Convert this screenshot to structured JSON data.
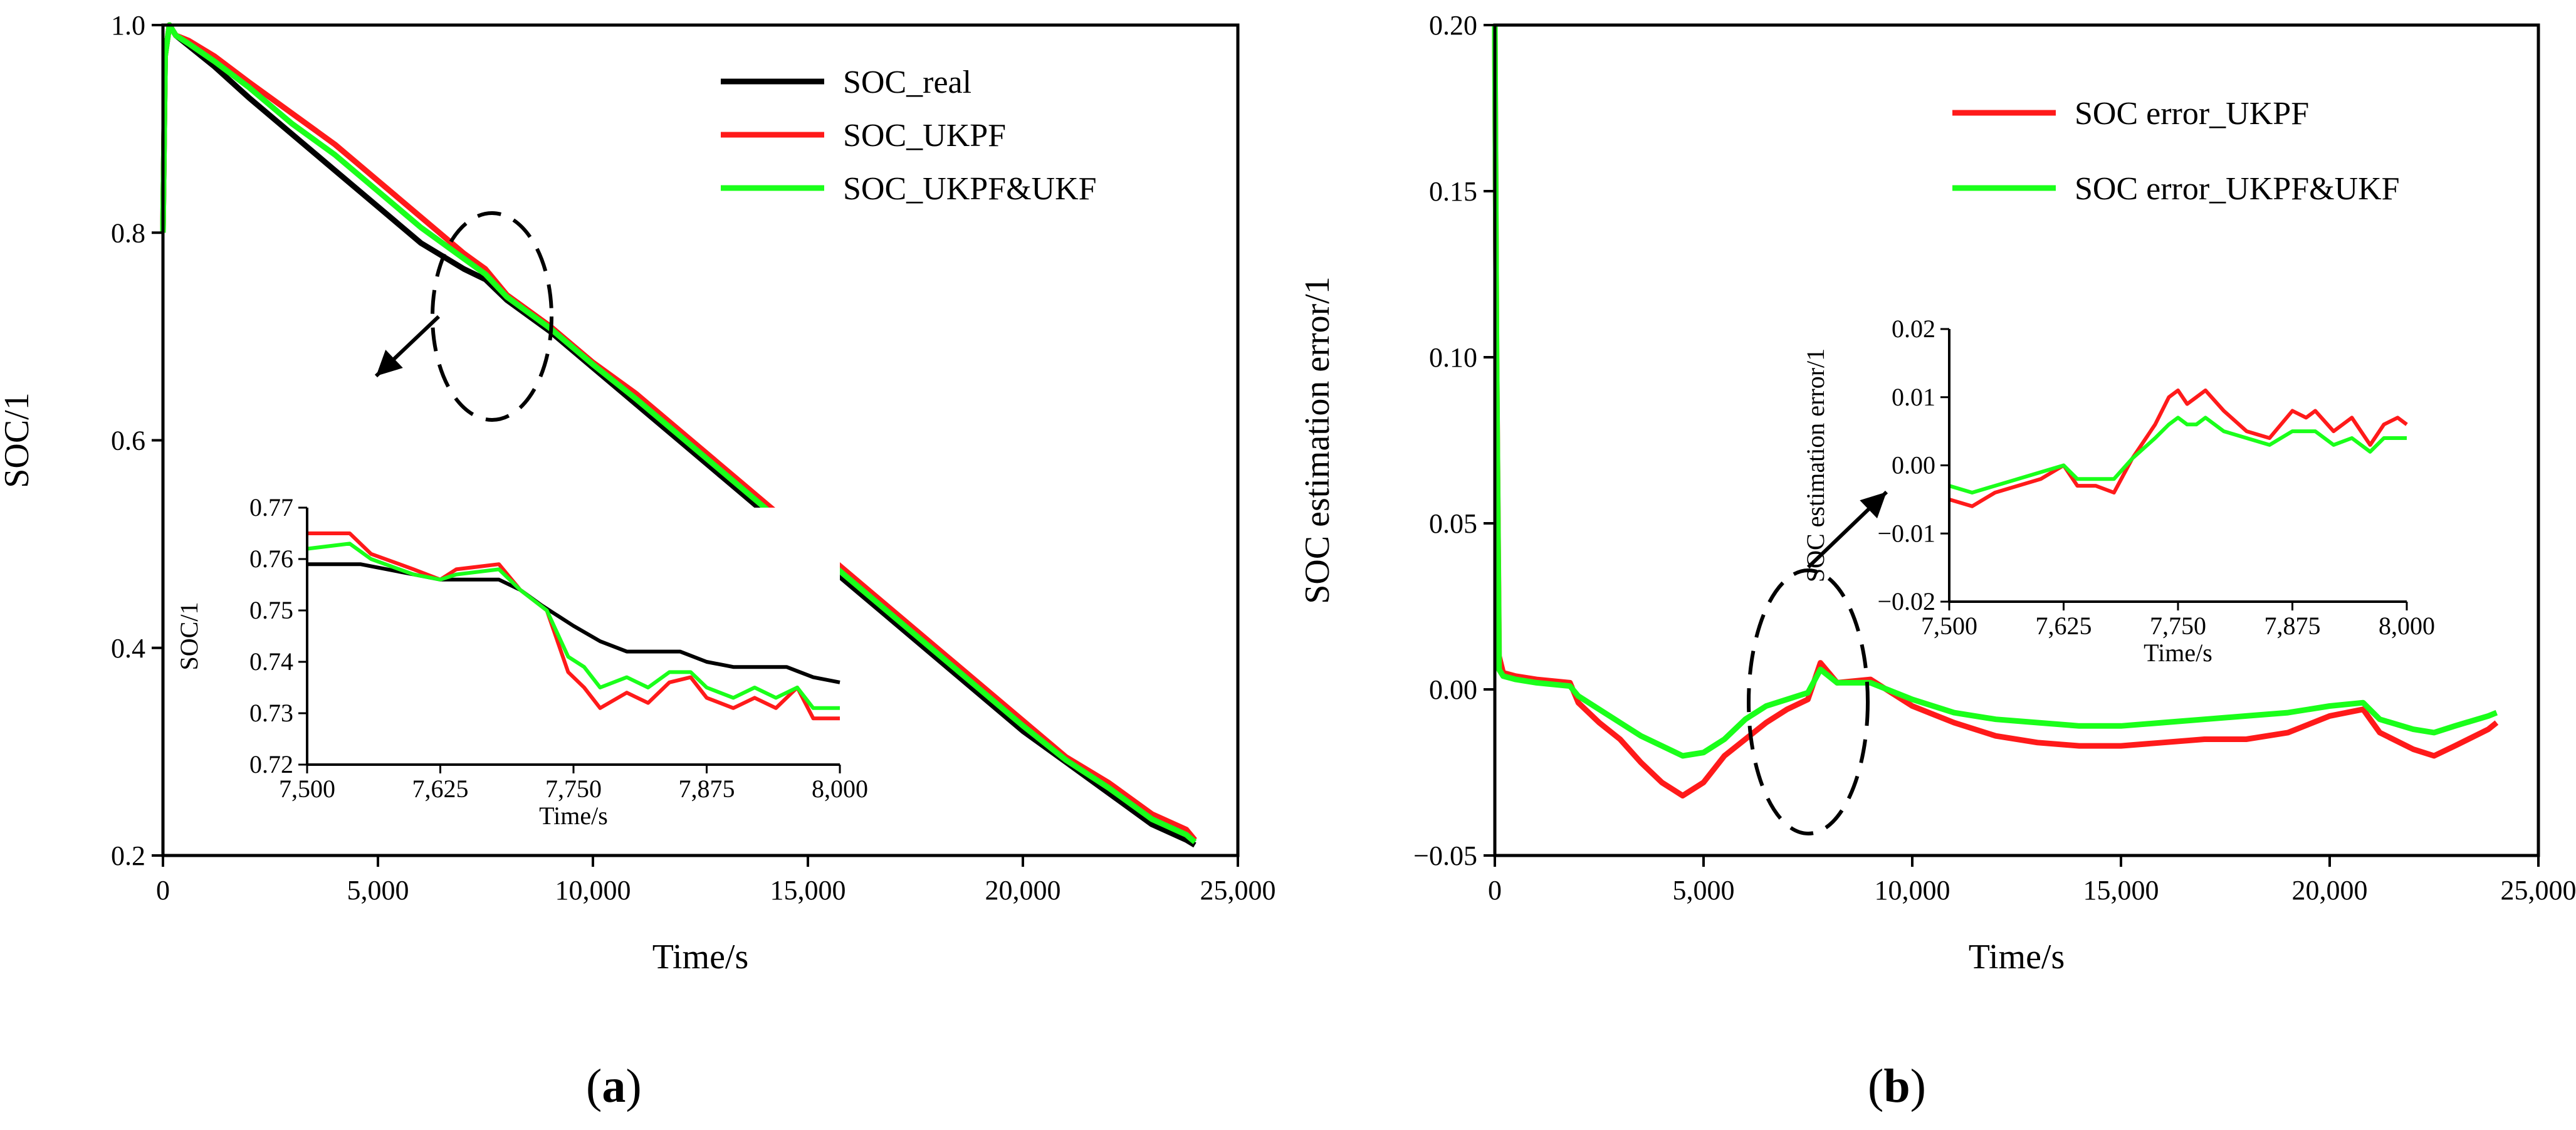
{
  "figure": {
    "captions": [
      "(a)",
      "(b)"
    ],
    "caption_letters": [
      "a",
      "b"
    ]
  },
  "chart_data": [
    {
      "type": "line",
      "panel": "a",
      "xlabel": "Time/s",
      "ylabel": "SOC/1",
      "xlim": [
        0,
        25000
      ],
      "ylim": [
        0.2,
        1.0
      ],
      "x_ticks": [
        "0",
        "5,000",
        "10,000",
        "15,000",
        "20,000",
        "25,000"
      ],
      "y_ticks": [
        "0.2",
        "0.4",
        "0.6",
        "0.8",
        "1.0"
      ],
      "legend": [
        "SOC_real",
        "SOC_UKPF",
        "SOC_UKPF&UKF"
      ],
      "colors": [
        "#000000",
        "#ff1a1a",
        "#1aff1a"
      ],
      "series": [
        {
          "name": "SOC_real",
          "x": [
            0,
            50,
            150,
            300,
            600,
            1200,
            2000,
            3000,
            4000,
            5000,
            6000,
            7000,
            7500,
            8000,
            9000,
            10000,
            11000,
            12000,
            13000,
            14000,
            15000,
            16000,
            17000,
            18000,
            19000,
            20000,
            21000,
            22000,
            23000,
            23800,
            24000
          ],
          "y": [
            0.8,
            0.97,
            1.0,
            0.99,
            0.98,
            0.96,
            0.93,
            0.895,
            0.86,
            0.825,
            0.79,
            0.765,
            0.755,
            0.735,
            0.705,
            0.67,
            0.635,
            0.6,
            0.565,
            0.53,
            0.495,
            0.46,
            0.425,
            0.39,
            0.355,
            0.32,
            0.29,
            0.26,
            0.23,
            0.215,
            0.21
          ]
        },
        {
          "name": "SOC_UKPF",
          "x": [
            0,
            50,
            150,
            300,
            600,
            1200,
            2000,
            3000,
            4000,
            5000,
            6000,
            7000,
            7500,
            8000,
            9000,
            10000,
            11000,
            12000,
            13000,
            14000,
            15000,
            16000,
            17000,
            18000,
            19000,
            20000,
            21000,
            22000,
            23000,
            23800,
            24000
          ],
          "y": [
            0.8,
            0.97,
            1.0,
            0.99,
            0.985,
            0.97,
            0.945,
            0.915,
            0.885,
            0.85,
            0.815,
            0.78,
            0.765,
            0.74,
            0.71,
            0.675,
            0.645,
            0.61,
            0.575,
            0.54,
            0.505,
            0.47,
            0.435,
            0.4,
            0.365,
            0.33,
            0.295,
            0.27,
            0.24,
            0.225,
            0.215
          ]
        },
        {
          "name": "SOC_UKPF&UKF",
          "x": [
            0,
            50,
            150,
            300,
            600,
            1200,
            2000,
            3000,
            4000,
            5000,
            6000,
            7000,
            7500,
            8000,
            9000,
            10000,
            11000,
            12000,
            13000,
            14000,
            15000,
            16000,
            17000,
            18000,
            19000,
            20000,
            21000,
            22000,
            23000,
            23800,
            24000
          ],
          "y": [
            0.8,
            0.97,
            1.0,
            0.99,
            0.982,
            0.965,
            0.94,
            0.905,
            0.875,
            0.84,
            0.805,
            0.775,
            0.76,
            0.738,
            0.708,
            0.673,
            0.64,
            0.605,
            0.57,
            0.535,
            0.5,
            0.465,
            0.43,
            0.395,
            0.36,
            0.325,
            0.292,
            0.265,
            0.235,
            0.22,
            0.213
          ]
        }
      ],
      "inset": {
        "xlabel": "Time/s",
        "ylabel": "SOC/1",
        "xlim": [
          7500,
          8000
        ],
        "ylim": [
          0.72,
          0.77
        ],
        "x_ticks": [
          "7,500",
          "7,625",
          "7,750",
          "7,875",
          "8,000"
        ],
        "y_ticks": [
          "0.72",
          "0.73",
          "0.74",
          "0.75",
          "0.76",
          "0.77"
        ],
        "series": [
          {
            "name": "SOC_real",
            "x": [
              7500,
              7550,
              7600,
              7625,
              7650,
              7680,
              7700,
              7720,
              7750,
              7775,
              7800,
              7850,
              7875,
              7900,
              7950,
              7975,
              8000
            ],
            "y": [
              0.759,
              0.759,
              0.757,
              0.756,
              0.756,
              0.756,
              0.754,
              0.751,
              0.747,
              0.744,
              0.742,
              0.742,
              0.74,
              0.739,
              0.739,
              0.737,
              0.736
            ]
          },
          {
            "name": "SOC_UKPF",
            "x": [
              7500,
              7540,
              7560,
              7600,
              7625,
              7640,
              7680,
              7700,
              7725,
              7745,
              7760,
              7775,
              7800,
              7820,
              7840,
              7860,
              7875,
              7900,
              7920,
              7940,
              7960,
              7975,
              8000
            ],
            "y": [
              0.765,
              0.765,
              0.761,
              0.758,
              0.756,
              0.758,
              0.759,
              0.754,
              0.75,
              0.738,
              0.735,
              0.731,
              0.734,
              0.732,
              0.736,
              0.737,
              0.733,
              0.731,
              0.733,
              0.731,
              0.735,
              0.729,
              0.729
            ]
          },
          {
            "name": "SOC_UKPF&UKF",
            "x": [
              7500,
              7540,
              7560,
              7600,
              7625,
              7640,
              7680,
              7700,
              7725,
              7745,
              7760,
              7775,
              7800,
              7820,
              7840,
              7860,
              7875,
              7900,
              7920,
              7940,
              7960,
              7975,
              8000
            ],
            "y": [
              0.762,
              0.763,
              0.76,
              0.757,
              0.756,
              0.757,
              0.758,
              0.754,
              0.75,
              0.741,
              0.739,
              0.735,
              0.737,
              0.735,
              0.738,
              0.738,
              0.735,
              0.733,
              0.735,
              0.733,
              0.735,
              0.731,
              0.731
            ]
          }
        ]
      }
    },
    {
      "type": "line",
      "panel": "b",
      "xlabel": "Time/s",
      "ylabel": "SOC estimation error/1",
      "xlim": [
        0,
        25000
      ],
      "ylim": [
        -0.05,
        0.2
      ],
      "x_ticks": [
        "0",
        "5,000",
        "10,000",
        "15,000",
        "20,000",
        "25,000"
      ],
      "y_ticks": [
        "−0.05",
        "0.00",
        "0.05",
        "0.10",
        "0.15",
        "0.20"
      ],
      "legend": [
        "SOC error_UKPF",
        "SOC error_UKPF&UKF"
      ],
      "colors": [
        "#ff1a1a",
        "#1aff1a"
      ],
      "series": [
        {
          "name": "SOC error_UKPF",
          "x": [
            0,
            40,
            100,
            200,
            500,
            1000,
            1800,
            2000,
            2500,
            3000,
            3500,
            4000,
            4500,
            5000,
            5500,
            6000,
            6500,
            7000,
            7500,
            7800,
            8200,
            9000,
            10000,
            11000,
            12000,
            13000,
            14000,
            15000,
            16000,
            17000,
            18000,
            19000,
            20000,
            20800,
            21200,
            22000,
            22500,
            23000,
            23800,
            24000
          ],
          "y": [
            0.2,
            0.1,
            0.01,
            0.005,
            0.004,
            0.003,
            0.002,
            -0.004,
            -0.01,
            -0.015,
            -0.022,
            -0.028,
            -0.032,
            -0.028,
            -0.02,
            -0.015,
            -0.01,
            -0.006,
            -0.003,
            0.008,
            0.002,
            0.003,
            -0.005,
            -0.01,
            -0.014,
            -0.016,
            -0.017,
            -0.017,
            -0.016,
            -0.015,
            -0.015,
            -0.013,
            -0.008,
            -0.006,
            -0.013,
            -0.018,
            -0.02,
            -0.017,
            -0.012,
            -0.01
          ]
        },
        {
          "name": "SOC error_UKPF&UKF",
          "x": [
            0,
            40,
            100,
            200,
            500,
            1000,
            1800,
            2000,
            2500,
            3000,
            3500,
            4000,
            4500,
            5000,
            5500,
            6000,
            6500,
            7000,
            7500,
            7800,
            8200,
            9000,
            10000,
            11000,
            12000,
            13000,
            14000,
            15000,
            16000,
            17000,
            18000,
            19000,
            20000,
            20800,
            21200,
            22000,
            22500,
            23000,
            23800,
            24000
          ],
          "y": [
            0.2,
            0.1,
            0.006,
            0.004,
            0.003,
            0.002,
            0.001,
            -0.002,
            -0.006,
            -0.01,
            -0.014,
            -0.017,
            -0.02,
            -0.019,
            -0.015,
            -0.009,
            -0.005,
            -0.003,
            -0.001,
            0.006,
            0.002,
            0.002,
            -0.003,
            -0.007,
            -0.009,
            -0.01,
            -0.011,
            -0.011,
            -0.01,
            -0.009,
            -0.008,
            -0.007,
            -0.005,
            -0.004,
            -0.009,
            -0.012,
            -0.013,
            -0.011,
            -0.008,
            -0.007
          ]
        }
      ],
      "inset": {
        "xlabel": "Time/s",
        "ylabel": "SOC estimation error/1",
        "xlim": [
          7500,
          8000
        ],
        "ylim": [
          -0.02,
          0.02
        ],
        "x_ticks": [
          "7,500",
          "7,625",
          "7,750",
          "7,875",
          "8,000"
        ],
        "y_ticks": [
          "−0.02",
          "−0.01",
          "0.00",
          "0.01",
          "0.02"
        ],
        "series": [
          {
            "name": "SOC error_UKPF",
            "x": [
              7500,
              7525,
              7550,
              7575,
              7600,
              7625,
              7640,
              7660,
              7680,
              7700,
              7725,
              7740,
              7750,
              7760,
              7770,
              7780,
              7800,
              7825,
              7850,
              7875,
              7890,
              7900,
              7920,
              7940,
              7960,
              7975,
              7990,
              8000
            ],
            "y": [
              -0.005,
              -0.006,
              -0.004,
              -0.003,
              -0.002,
              0.0,
              -0.003,
              -0.003,
              -0.004,
              0.001,
              0.006,
              0.01,
              0.011,
              0.009,
              0.01,
              0.011,
              0.008,
              0.005,
              0.004,
              0.008,
              0.007,
              0.008,
              0.005,
              0.007,
              0.003,
              0.006,
              0.007,
              0.006
            ]
          },
          {
            "name": "SOC error_UKPF&UKF",
            "x": [
              7500,
              7525,
              7550,
              7575,
              7600,
              7625,
              7640,
              7660,
              7680,
              7700,
              7725,
              7740,
              7750,
              7760,
              7770,
              7780,
              7800,
              7825,
              7850,
              7875,
              7890,
              7900,
              7920,
              7940,
              7960,
              7975,
              7990,
              8000
            ],
            "y": [
              -0.003,
              -0.004,
              -0.003,
              -0.002,
              -0.001,
              0.0,
              -0.002,
              -0.002,
              -0.002,
              0.001,
              0.004,
              0.006,
              0.007,
              0.006,
              0.006,
              0.007,
              0.005,
              0.004,
              0.003,
              0.005,
              0.005,
              0.005,
              0.003,
              0.004,
              0.002,
              0.004,
              0.004,
              0.004
            ]
          }
        ]
      }
    }
  ]
}
